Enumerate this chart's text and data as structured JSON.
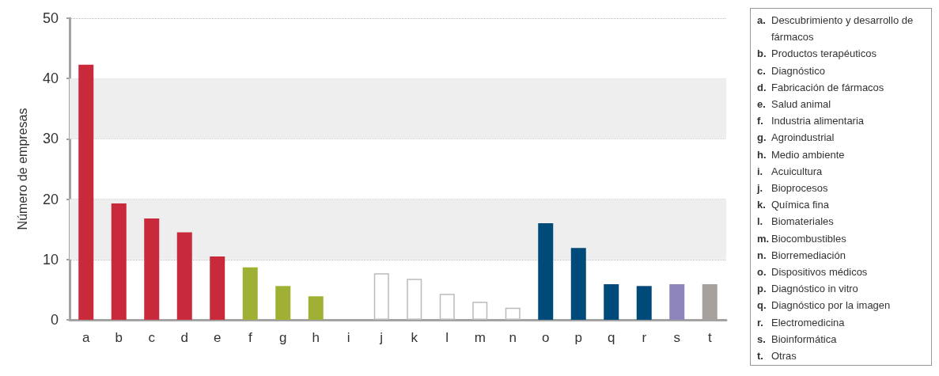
{
  "chart_data": {
    "type": "bar",
    "ylabel": "Número de empresas",
    "categories": [
      "a",
      "b",
      "c",
      "d",
      "e",
      "f",
      "g",
      "h",
      "i",
      "j",
      "k",
      "l",
      "m",
      "n",
      "o",
      "p",
      "q",
      "r",
      "s",
      "t"
    ],
    "values": [
      42.3,
      19.3,
      16.8,
      14.5,
      10.5,
      8.7,
      5.6,
      3.9,
      0,
      7.7,
      6.8,
      4.3,
      3.0,
      2.0,
      16.0,
      11.9,
      5.9,
      5.6,
      5.9,
      5.9
    ],
    "colors": [
      "#c8293b",
      "#c8293b",
      "#c8293b",
      "#c8293b",
      "#c8293b",
      "#a0b034",
      "#a0b034",
      "#a0b034",
      "#ffffff",
      "#ffffff",
      "#ffffff",
      "#ffffff",
      "#ffffff",
      "#ffffff",
      "#004a79",
      "#004a79",
      "#004a79",
      "#004a79",
      "#8e85bd",
      "#a7a19e"
    ],
    "ylim": [
      0,
      50
    ],
    "yticks": [
      0,
      10,
      20,
      30,
      40,
      50
    ],
    "grid": "y",
    "bands": [
      {
        "axis": "y",
        "from": 10,
        "to": 20,
        "color": "#eeeeee"
      },
      {
        "axis": "y",
        "from": 30,
        "to": 40,
        "color": "#eeeeee"
      }
    ],
    "annotations": [
      "a. Descubrimiento y desarrollo de fármacos",
      "b. Productos terapéuticos",
      "c. Diagnóstico",
      "d. Fabricación de fármacos",
      "e. Salud animal",
      "f. Industria alimentaria",
      "g. Agroindustrial",
      "h. Medio ambiente",
      "i. Acuicultura",
      "j. Bioprocesos",
      "k. Química fina",
      "l. Biomateriales",
      "m. Biocombustibles",
      "n. Biorremediación",
      "o. Dispositivos médicos",
      "p. Diagnóstico in vitro",
      "q. Diagnóstico por la imagen",
      "r. Electromedicina",
      "s. Bioinformática",
      "t. Otras"
    ]
  }
}
